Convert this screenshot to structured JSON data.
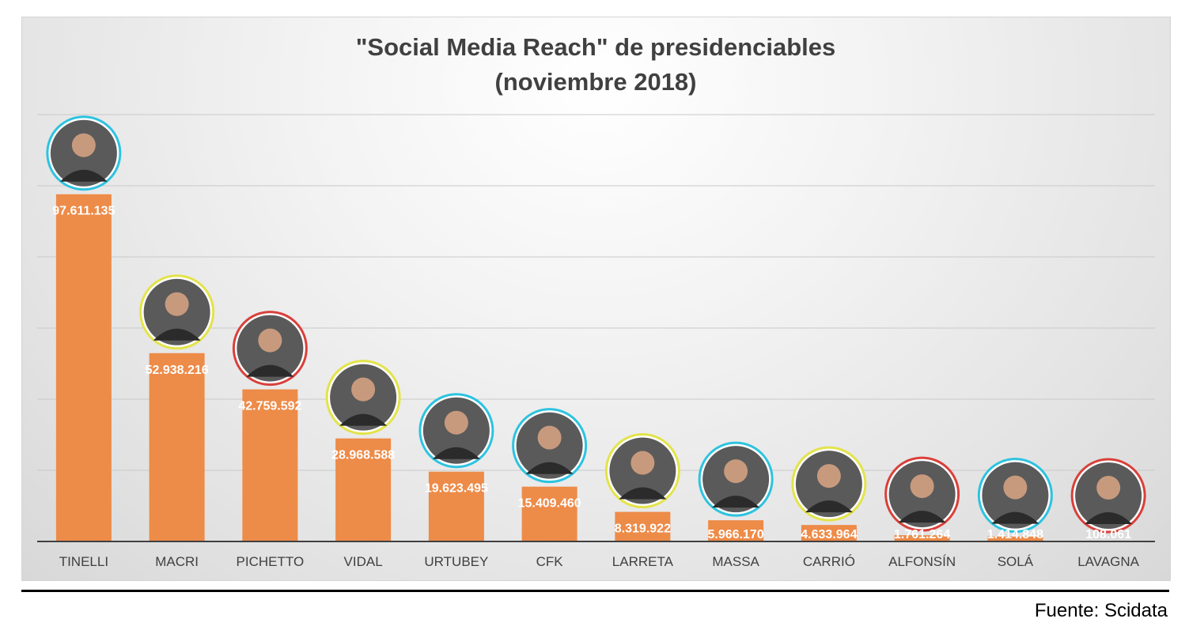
{
  "chart_data": {
    "type": "bar",
    "title": "\"Social Media Reach\" de presidenciables",
    "subtitle": "(noviembre 2018)",
    "categories": [
      "TINELLI",
      "MACRI",
      "PICHETTO",
      "VIDAL",
      "URTUBEY",
      "CFK",
      "LARRETA",
      "MASSA",
      "CARRIÓ",
      "ALFONSÍN",
      "SOLÁ",
      "LAVAGNA"
    ],
    "values": [
      97611135,
      52938216,
      42759592,
      28968588,
      19623495,
      15409460,
      8319922,
      5966170,
      4633964,
      1761264,
      1414848,
      108061
    ],
    "data_labels": [
      "97.611.135",
      "52.938.216",
      "42.759.592",
      "28.968.588",
      "19.623.495",
      "15.409.460",
      "8.319.922",
      "5.966.170",
      "4.633.964",
      "1.761.264",
      "1.414.848",
      "108.061"
    ],
    "ring_colors": [
      "#2cc3e0",
      "#e3e34a",
      "#d9403a",
      "#e3e34a",
      "#2cc3e0",
      "#2cc3e0",
      "#e3e34a",
      "#2cc3e0",
      "#e3e34a",
      "#d9403a",
      "#2cc3e0",
      "#d9403a"
    ],
    "ylim": [
      0,
      120000000
    ],
    "grid": true,
    "legend": "none",
    "xlabel": "",
    "ylabel": "",
    "colors": {
      "bar": "#ed8b48",
      "grid": "#c9c9c9",
      "axis": "#404040",
      "photo_fill": "#5a5a5a"
    }
  },
  "source": "Fuente: Scidata"
}
